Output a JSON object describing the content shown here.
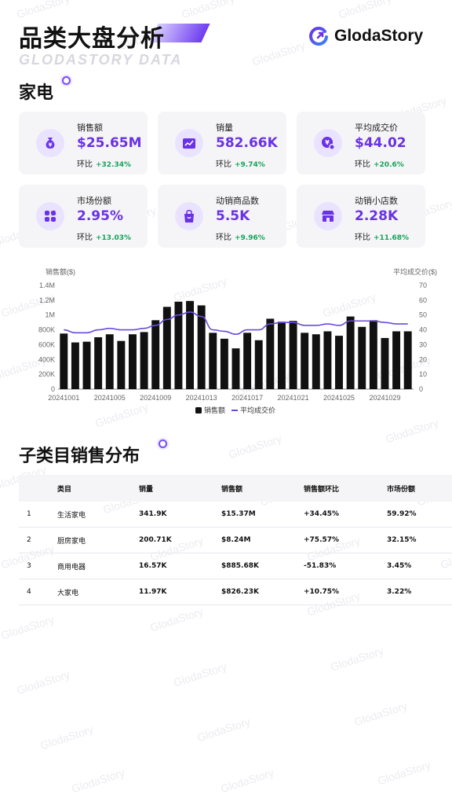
{
  "header": {
    "title": "品类大盘分析",
    "subtitle": "GLODASTORY DATA",
    "brand": "GlodaStory"
  },
  "watermark": "GlodaStory",
  "section1": {
    "title": "家电"
  },
  "metrics": [
    {
      "label": "销售额",
      "value": "$25.65M",
      "change_label": "环比",
      "change": "+32.34%",
      "icon": "money-bag-icon"
    },
    {
      "label": "销量",
      "value": "582.66K",
      "change_label": "环比",
      "change": "+9.74%",
      "icon": "trend-chart-icon"
    },
    {
      "label": "平均成交价",
      "value": "$44.02",
      "change_label": "环比",
      "change": "+20.6%",
      "icon": "price-tag-icon"
    },
    {
      "label": "市场份额",
      "value": "2.95%",
      "change_label": "环比",
      "change": "+13.03%",
      "icon": "share-grid-icon"
    },
    {
      "label": "动销商品数",
      "value": "5.5K",
      "change_label": "环比",
      "change": "+9.96%",
      "icon": "shopping-bag-icon"
    },
    {
      "label": "动销小店数",
      "value": "2.28K",
      "change_label": "环比",
      "change": "+11.68%",
      "icon": "store-icon"
    }
  ],
  "chart_data": {
    "type": "bar",
    "y_left_label": "销售额($)",
    "y_right_label": "平均成交价($)",
    "y_left_ticks": [
      "0",
      "200K",
      "400K",
      "600K",
      "800K",
      "1M",
      "1.2M",
      "1.4M"
    ],
    "y_right_ticks": [
      "0",
      "10",
      "20",
      "30",
      "40",
      "50",
      "60",
      "70"
    ],
    "ylim_left": [
      0,
      1400000
    ],
    "ylim_right": [
      0,
      70
    ],
    "x_ticks": [
      "20241001",
      "20241005",
      "20241009",
      "20241013",
      "20241017",
      "20241021",
      "20241025",
      "20241029"
    ],
    "categories": [
      "20241001",
      "20241002",
      "20241003",
      "20241004",
      "20241005",
      "20241006",
      "20241007",
      "20241008",
      "20241009",
      "20241010",
      "20241011",
      "20241012",
      "20241013",
      "20241014",
      "20241015",
      "20241016",
      "20241017",
      "20241018",
      "20241019",
      "20241020",
      "20241021",
      "20241022",
      "20241023",
      "20241024",
      "20241025",
      "20241026",
      "20241027",
      "20241028",
      "20241029",
      "20241030",
      "20241031"
    ],
    "series": [
      {
        "name": "销售额",
        "type": "bar",
        "color": "#111111",
        "values": [
          750000,
          630000,
          640000,
          700000,
          740000,
          650000,
          740000,
          770000,
          930000,
          1110000,
          1180000,
          1190000,
          1130000,
          760000,
          680000,
          550000,
          760000,
          660000,
          950000,
          910000,
          920000,
          760000,
          740000,
          780000,
          720000,
          980000,
          840000,
          930000,
          690000,
          780000,
          780000
        ]
      },
      {
        "name": "平均成交价",
        "type": "line",
        "axis": "right",
        "color": "#6a4cdb",
        "values": [
          40,
          38,
          38,
          40,
          41,
          40,
          40,
          41,
          43,
          47,
          50,
          52,
          49,
          40,
          39,
          37,
          40,
          40,
          44,
          45,
          45,
          43,
          43,
          44,
          43,
          46,
          46,
          46,
          45,
          44,
          44
        ]
      }
    ],
    "legend_position": "bottom"
  },
  "section2": {
    "title": "子类目销售分布"
  },
  "subcategory_table": {
    "headers": [
      "",
      "类目",
      "销量",
      "销售额",
      "销售额环比",
      "市场份额"
    ],
    "rows": [
      {
        "rank": "1",
        "name": "生活家电",
        "units": "341.9K",
        "sales": "$15.37M",
        "mom": "+34.45%",
        "share": "59.92%"
      },
      {
        "rank": "2",
        "name": "厨房家电",
        "units": "200.71K",
        "sales": "$8.24M",
        "mom": "+75.57%",
        "share": "32.15%"
      },
      {
        "rank": "3",
        "name": "商用电器",
        "units": "16.57K",
        "sales": "$885.68K",
        "mom": "-51.83%",
        "share": "3.45%"
      },
      {
        "rank": "4",
        "name": "大家电",
        "units": "11.97K",
        "sales": "$826.23K",
        "mom": "+10.75%",
        "share": "3.22%"
      }
    ]
  },
  "colors": {
    "accent": "#6a32e6",
    "positive": "#16a45a",
    "negative": "#d8233a"
  }
}
